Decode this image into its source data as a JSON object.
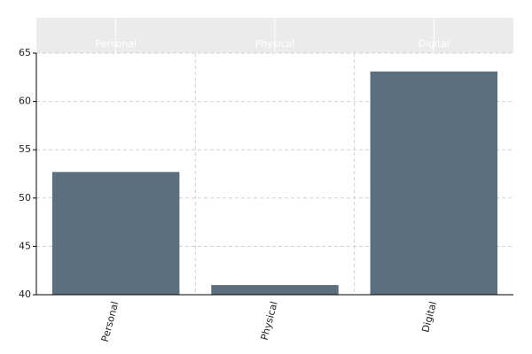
{
  "chart_data": {
    "type": "bar",
    "categories": [
      "Personal",
      "Physical",
      "Digital"
    ],
    "values": [
      52.7,
      41.0,
      63.1
    ],
    "color": "#5c6f7e",
    "ylim": [
      40,
      65
    ],
    "yticks": [
      40,
      45,
      50,
      55,
      60,
      65
    ],
    "grid": true
  }
}
